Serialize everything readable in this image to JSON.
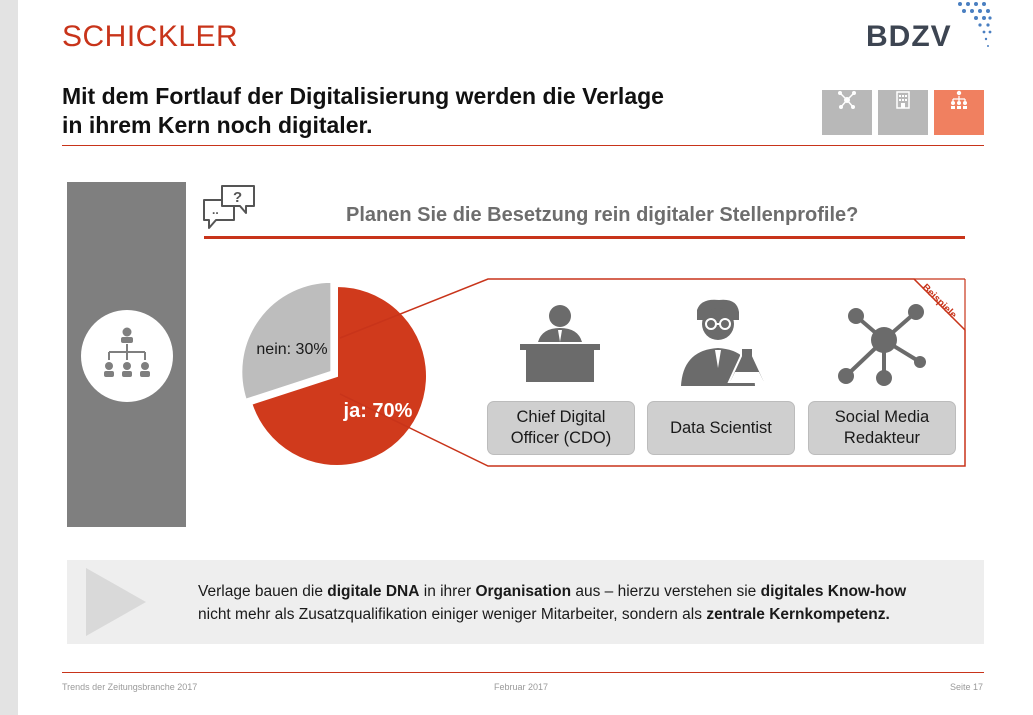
{
  "header": {
    "brand": "SCHICKLER",
    "partner_logo": "BDZV",
    "headline_line1": "Mit dem Fortlauf der Digitalisierung werden die Verlage",
    "headline_line2": "in ihrem Kern noch digitaler."
  },
  "nav_icons": [
    "network-icon",
    "building-icon",
    "org-chart-icon"
  ],
  "question": "Planen Sie die Besetzung rein digitaler Stellenprofile?",
  "chart_data": {
    "type": "pie",
    "categories": [
      "ja",
      "nein"
    ],
    "values": [
      70,
      30
    ],
    "labels": [
      "ja: 70%",
      "nein: 30%"
    ],
    "colors": [
      "#d03a1c",
      "#bdbdbd"
    ]
  },
  "examples": {
    "badge": "Beispiele",
    "roles": [
      {
        "line1": "Chief Digital",
        "line2": "Officer (CDO)",
        "icon": "executive-desk-icon"
      },
      {
        "line1": "Data Scientist",
        "line2": "",
        "icon": "scientist-icon"
      },
      {
        "line1": "Social Media",
        "line2": "Redakteur",
        "icon": "social-network-icon"
      }
    ]
  },
  "banner": {
    "t1": "Verlage bauen die ",
    "b1": "digitale DNA",
    "t2": " in ihrer ",
    "b2": "Organisation",
    "t3": " aus – hierzu verstehen sie ",
    "b3": "digitales Know-how",
    "t4": "nicht mehr als Zusatzqualifikation einiger weniger Mitarbeiter, sondern als ",
    "b4": "zentrale Kernkompetenz."
  },
  "footer": {
    "left": "Trends der Zeitungsbranche 2017",
    "center": "Februar 2017",
    "right": "Seite 17"
  },
  "colors": {
    "accent": "#c8341a",
    "pie_yes": "#d03a1c",
    "pie_no": "#bdbdbd",
    "panel_grey": "#7f7f7f"
  }
}
